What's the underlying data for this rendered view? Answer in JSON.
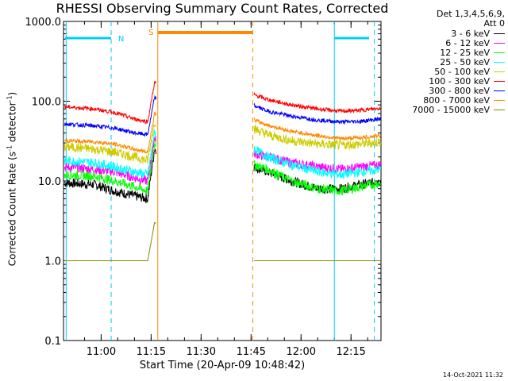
{
  "chart_data": {
    "type": "line",
    "title": "RHESSI Observing Summary Count Rates, Corrected",
    "xlabel": "Start Time (20-Apr-09 10:48:42)",
    "ylabel_parts": [
      "Corrected Count Rate (s",
      "-1",
      " detector",
      "-1",
      ")"
    ],
    "x_range": [
      "10:48:42",
      "12:24:00"
    ],
    "x_ticks": [
      "11:00",
      "11:15",
      "11:30",
      "11:45",
      "12:00",
      "12:15"
    ],
    "y_scale": "log",
    "y_range": [
      0.1,
      1000
    ],
    "y_ticks": [
      "1000.0",
      "100.0",
      "10.0",
      "1.0",
      "0.1"
    ],
    "legend_header": [
      "Det 1,3,4,5,6,9,",
      "Att 0"
    ],
    "legend_placement": "right of plot",
    "series": [
      {
        "name": "3 - 6 keV",
        "color": "#000000",
        "x": [
          "10:49",
          "10:58",
          "11:04",
          "11:10",
          "11:14",
          "11:16",
          "11:46",
          "11:50",
          "11:57",
          "12:05",
          "12:12",
          "12:18",
          "12:24"
        ],
        "values": [
          9.5,
          9.0,
          7.5,
          6.5,
          6.0,
          25,
          15,
          13,
          10,
          8,
          8,
          9,
          10
        ]
      },
      {
        "name": "6 - 12 keV",
        "color": "#ff00ff",
        "x": [
          "10:49",
          "10:58",
          "11:04",
          "11:10",
          "11:14",
          "11:16",
          "11:46",
          "11:50",
          "11:57",
          "12:05",
          "12:12",
          "12:18",
          "12:24"
        ],
        "values": [
          15,
          14,
          13,
          11,
          10,
          35,
          22,
          20,
          17,
          15,
          14,
          15,
          16
        ]
      },
      {
        "name": "12 - 25 keV",
        "color": "#00ff00",
        "x": [
          "10:49",
          "10:58",
          "11:04",
          "11:10",
          "11:14",
          "11:16",
          "11:46",
          "11:50",
          "11:57",
          "12:05",
          "12:12",
          "12:18",
          "12:24"
        ],
        "values": [
          12,
          11.5,
          10,
          8.5,
          7.5,
          30,
          16,
          14,
          10,
          8,
          7.5,
          8.5,
          9.5
        ]
      },
      {
        "name": "25 - 50 keV",
        "color": "#00ffff",
        "x": [
          "10:49",
          "10:58",
          "11:04",
          "11:10",
          "11:14",
          "11:16",
          "11:46",
          "11:50",
          "11:57",
          "12:05",
          "12:12",
          "12:18",
          "12:24"
        ],
        "values": [
          18,
          17,
          15,
          13,
          12,
          40,
          25,
          20,
          16,
          13,
          12,
          13,
          14
        ]
      },
      {
        "name": "50 - 100 keV",
        "color": "#cccc00",
        "x": [
          "10:49",
          "10:58",
          "11:04",
          "11:10",
          "11:14",
          "11:16",
          "11:46",
          "11:50",
          "11:57",
          "12:05",
          "12:12",
          "12:18",
          "12:24"
        ],
        "values": [
          27,
          25,
          23,
          20,
          18,
          55,
          45,
          38,
          32,
          29,
          28,
          29,
          31
        ]
      },
      {
        "name": "100 - 300 keV",
        "color": "#ff0000",
        "x": [
          "10:49",
          "10:58",
          "11:04",
          "11:10",
          "11:14",
          "11:16",
          "11:46",
          "11:50",
          "11:57",
          "12:05",
          "12:12",
          "12:18",
          "12:24"
        ],
        "values": [
          85,
          80,
          72,
          60,
          55,
          170,
          120,
          105,
          90,
          80,
          75,
          77,
          82
        ]
      },
      {
        "name": "300 - 800 keV",
        "color": "#0000ff",
        "x": [
          "10:49",
          "10:58",
          "11:04",
          "11:10",
          "11:14",
          "11:16",
          "11:46",
          "11:50",
          "11:57",
          "12:05",
          "12:12",
          "12:18",
          "12:24"
        ],
        "values": [
          52,
          49,
          46,
          40,
          38,
          110,
          88,
          75,
          65,
          58,
          55,
          56,
          60
        ]
      },
      {
        "name": "800 - 7000 keV",
        "color": "#ff8800",
        "x": [
          "10:49",
          "10:58",
          "11:04",
          "11:10",
          "11:14",
          "11:16",
          "11:46",
          "11:50",
          "11:57",
          "12:05",
          "12:12",
          "12:18",
          "12:24"
        ],
        "values": [
          32,
          31,
          29,
          25,
          23,
          70,
          58,
          50,
          42,
          37,
          34,
          35,
          37
        ]
      },
      {
        "name": "7000 - 15000 keV",
        "color": "#888800",
        "x": [
          "10:49",
          "10:58",
          "11:04",
          "11:10",
          "11:14",
          "11:16",
          "11:46",
          "11:50",
          "12:24"
        ],
        "values": [
          1.0,
          1.0,
          1.0,
          1.0,
          1.0,
          3.0,
          1.0,
          1.0,
          1.0
        ]
      }
    ],
    "flag_labels": [
      "N",
      "S"
    ],
    "flag_colors": {
      "night": "#00ccff",
      "saa": "#ff8800"
    }
  },
  "footer": {
    "timestamp": "14-Oct-2021 11:32"
  }
}
